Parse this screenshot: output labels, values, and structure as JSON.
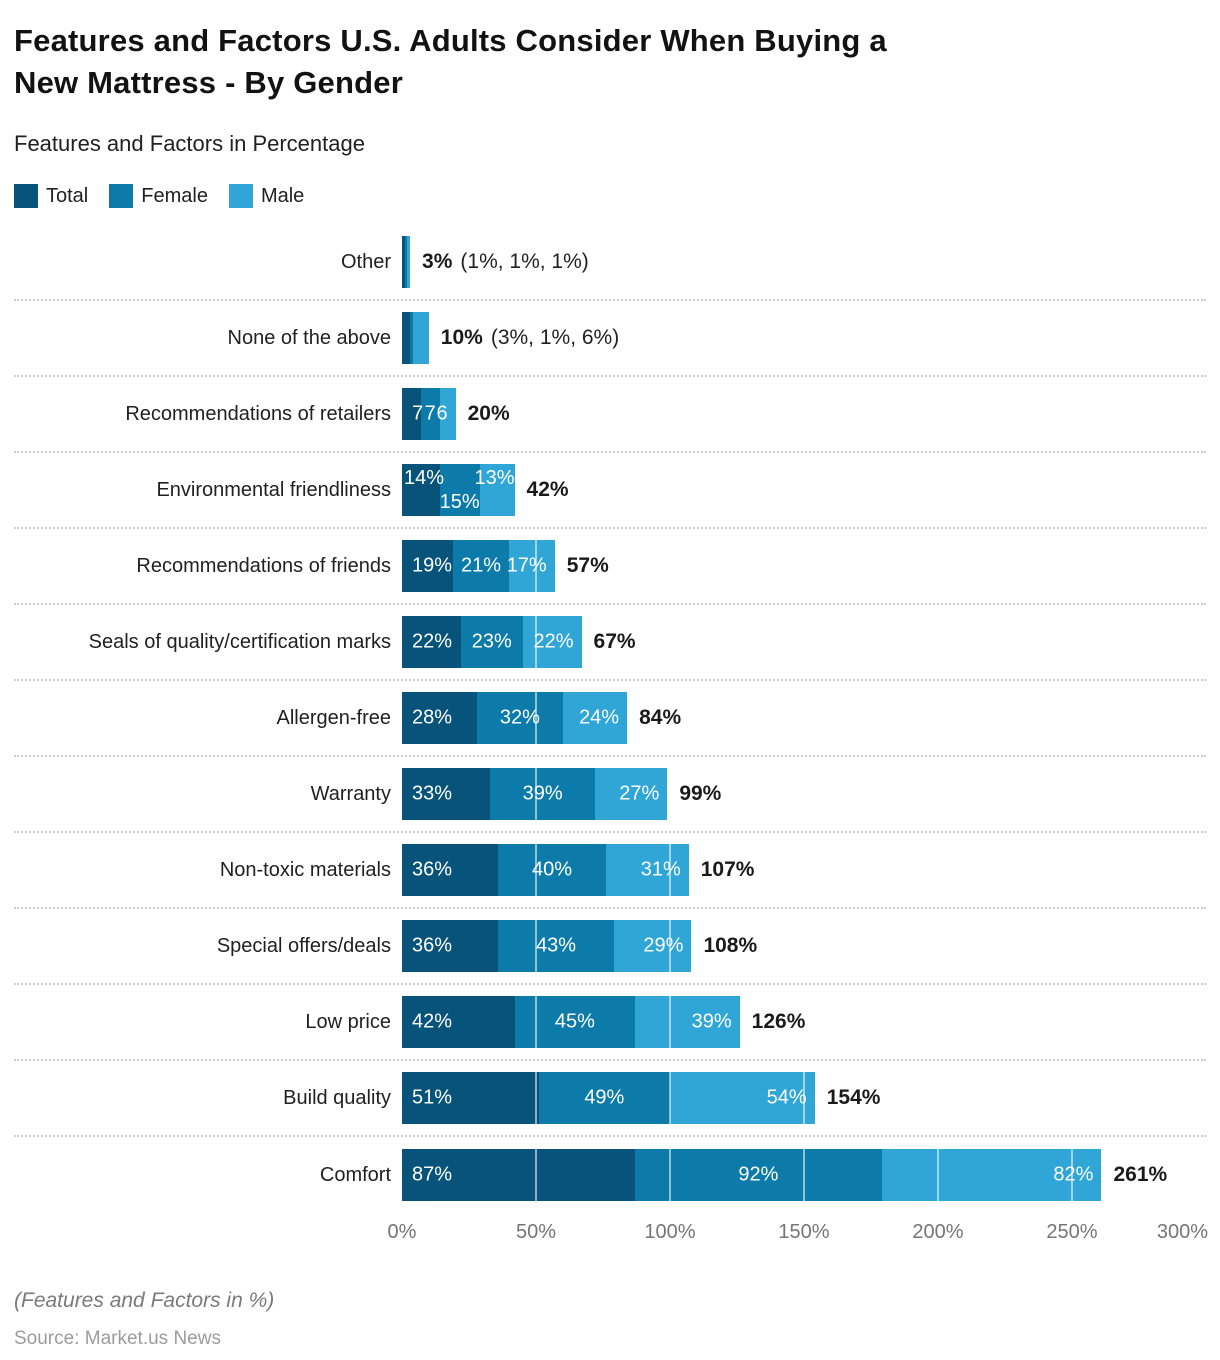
{
  "header": {
    "title_line1": "Features and Factors U.S. Adults Consider When Buying a",
    "title_line2": "New Mattress - By Gender",
    "subtitle": "Features and Factors in Percentage"
  },
  "legend": [
    {
      "label": "Total",
      "color": "#085379"
    },
    {
      "label": "Female",
      "color": "#0C7BA9"
    },
    {
      "label": "Male",
      "color": "#2FA6D6"
    }
  ],
  "chart_data": {
    "type": "bar",
    "orientation": "horizontal",
    "stacked": true,
    "grid": "vertical-white-over-bars",
    "legend_position": "top-left",
    "series_names": [
      "Total",
      "Female",
      "Male"
    ],
    "series_colors": [
      "#085379",
      "#0C7BA9",
      "#2FA6D6"
    ],
    "xlim": [
      0,
      300
    ],
    "x_ticks": [
      {
        "label": "0%",
        "value": 0
      },
      {
        "label": "50%",
        "value": 50
      },
      {
        "label": "100%",
        "value": 100
      },
      {
        "label": "150%",
        "value": 150
      },
      {
        "label": "200%",
        "value": 200
      },
      {
        "label": "250%",
        "value": 250
      },
      {
        "label": "300%",
        "value": 300
      }
    ],
    "rows": [
      {
        "category": "Other",
        "values": [
          1,
          1,
          1
        ],
        "sum": 3,
        "total_label": "3%",
        "detail": "(1%, 1%, 1%)",
        "labels": null,
        "stagger": false
      },
      {
        "category": "None of the above",
        "values": [
          3,
          1,
          6
        ],
        "sum": 10,
        "total_label": "10%",
        "detail": "(3%, 1%, 6%)",
        "labels": null,
        "stagger": false
      },
      {
        "category": "Recommendations of retailers",
        "values": [
          7,
          7,
          6
        ],
        "sum": 20,
        "total_label": "20%",
        "detail": null,
        "labels": [
          "7",
          "7",
          "6"
        ],
        "stagger": false
      },
      {
        "category": "Environmental friendliness",
        "values": [
          14,
          15,
          13
        ],
        "sum": 42,
        "total_label": "42%",
        "detail": null,
        "labels": [
          "14%",
          "15%",
          "13%"
        ],
        "stagger": true
      },
      {
        "category": "Recommendations of friends",
        "values": [
          19,
          21,
          17
        ],
        "sum": 57,
        "total_label": "57%",
        "detail": null,
        "labels": [
          "19%",
          "21%",
          "17%"
        ],
        "stagger": false
      },
      {
        "category": "Seals of quality/certification marks",
        "values": [
          22,
          23,
          22
        ],
        "sum": 67,
        "total_label": "67%",
        "detail": null,
        "labels": [
          "22%",
          "23%",
          "22%"
        ],
        "stagger": false
      },
      {
        "category": "Allergen-free",
        "values": [
          28,
          32,
          24
        ],
        "sum": 84,
        "total_label": "84%",
        "detail": null,
        "labels": [
          "28%",
          "32%",
          "24%"
        ],
        "stagger": false
      },
      {
        "category": "Warranty",
        "values": [
          33,
          39,
          27
        ],
        "sum": 99,
        "total_label": "99%",
        "detail": null,
        "labels": [
          "33%",
          "39%",
          "27%"
        ],
        "stagger": false
      },
      {
        "category": "Non-toxic materials",
        "values": [
          36,
          40,
          31
        ],
        "sum": 107,
        "total_label": "107%",
        "detail": null,
        "labels": [
          "36%",
          "40%",
          "31%"
        ],
        "stagger": false
      },
      {
        "category": "Special offers/deals",
        "values": [
          36,
          43,
          29
        ],
        "sum": 108,
        "total_label": "108%",
        "detail": null,
        "labels": [
          "36%",
          "43%",
          "29%"
        ],
        "stagger": false
      },
      {
        "category": "Low price",
        "values": [
          42,
          45,
          39
        ],
        "sum": 126,
        "total_label": "126%",
        "detail": null,
        "labels": [
          "42%",
          "45%",
          "39%"
        ],
        "stagger": false
      },
      {
        "category": "Build quality",
        "values": [
          51,
          49,
          54
        ],
        "sum": 154,
        "total_label": "154%",
        "detail": null,
        "labels": [
          "51%",
          "49%",
          "54%"
        ],
        "stagger": false
      },
      {
        "category": "Comfort",
        "values": [
          87,
          92,
          82
        ],
        "sum": 261,
        "total_label": "261%",
        "detail": null,
        "labels": [
          "87%",
          "92%",
          "82%"
        ],
        "stagger": false
      }
    ]
  },
  "footer": {
    "note": "(Features and Factors in %)",
    "source": "Source: Market.us News"
  }
}
